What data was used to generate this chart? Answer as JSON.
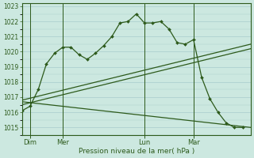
{
  "xlabel": "Pression niveau de la mer( hPa )",
  "bg_color": "#cce8e0",
  "grid_color": "#a8cccc",
  "line_color": "#2d5a1b",
  "ylim": [
    1014.5,
    1023.2
  ],
  "yticks": [
    1015,
    1016,
    1017,
    1018,
    1019,
    1020,
    1021,
    1022,
    1023
  ],
  "xlim": [
    0,
    28
  ],
  "x_tick_positions": [
    1,
    5,
    15,
    21
  ],
  "x_tick_labels": [
    "Dim",
    "Mer",
    "Lun",
    "Mar"
  ],
  "x_vline_positions": [
    1,
    5,
    15,
    21
  ],
  "line1_x": [
    0,
    1,
    2,
    3,
    4,
    5,
    6,
    7,
    8,
    9,
    10,
    11,
    12,
    13,
    14,
    15,
    16,
    17,
    18,
    19,
    20,
    21,
    22,
    23,
    24,
    25,
    26,
    27
  ],
  "line1_y": [
    1016.1,
    1016.4,
    1017.5,
    1019.2,
    1019.9,
    1020.3,
    1020.3,
    1019.8,
    1019.5,
    1019.9,
    1020.4,
    1021.0,
    1021.9,
    1022.0,
    1022.5,
    1021.9,
    1021.9,
    1022.0,
    1021.5,
    1020.6,
    1020.5,
    1020.8,
    1018.3,
    1016.9,
    1016.0,
    1015.3,
    1015.0,
    1015.0
  ],
  "line2_x": [
    0,
    28
  ],
  "line2_y": [
    1016.5,
    1020.2
  ],
  "line3_x": [
    0,
    28
  ],
  "line3_y": [
    1016.8,
    1020.5
  ],
  "line4_x": [
    0,
    28
  ],
  "line4_y": [
    1016.7,
    1015.0
  ]
}
